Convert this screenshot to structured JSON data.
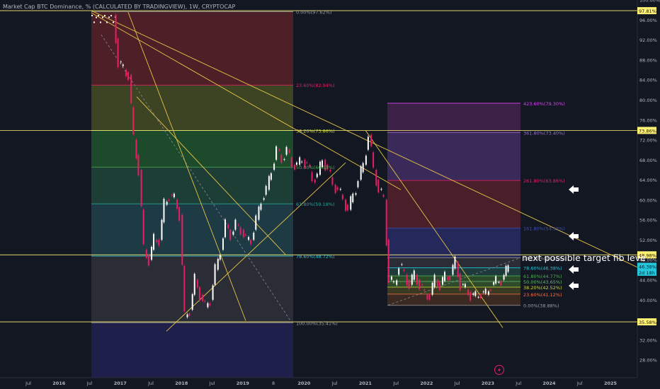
{
  "header": {
    "title": "Market Cap BTC Dominance, % (CALCULATED BY TRADINGVIEW), 1W, CRYPTOCAP"
  },
  "colors": {
    "background": "#131722",
    "axis_text": "#b2b5be",
    "trendline": "#e8c547",
    "candle_up": "#ffffff",
    "candle_down": "#e91e63",
    "price_tag": "#26c6da",
    "price_tag_secondary": "#ff9800",
    "level_tag": "#fff176"
  },
  "chart_data": {
    "type": "candlestick",
    "x_ticks": [
      "Jul",
      "2016",
      "Jul",
      "2017",
      "Jul",
      "2018",
      "Jul",
      "2019",
      "8",
      "2020",
      "Jul",
      "2021",
      "Jul",
      "2022",
      "Jul",
      "2023",
      "Jul",
      "2024",
      "Jul",
      "2025"
    ],
    "y_ticks": [
      "100.00%",
      "96.00%",
      "92.00%",
      "88.00%",
      "84.00%",
      "80.00%",
      "76.00%",
      "72.00%",
      "68.00%",
      "64.00%",
      "60.00%",
      "56.00%",
      "52.00%",
      "48.00%",
      "44.00%",
      "40.00%",
      "36.00%",
      "32.00%",
      "28.00%"
    ],
    "y_range": [
      27,
      100.5
    ],
    "price_labels": [
      {
        "text": "97.81%",
        "value": 97.81
      },
      {
        "text": "73.86%",
        "value": 73.86
      },
      {
        "text": "48.98%",
        "value": 48.98
      },
      {
        "text": "46.38%",
        "value": 46.38
      },
      {
        "text": "2d 18h",
        "value": 45.2
      },
      {
        "text": "35.58%",
        "value": 35.58
      }
    ],
    "fib_1": [
      {
        "label": "0.00%(97.62%)",
        "value": 97.62
      },
      {
        "label": "23.60%(82.94%)",
        "value": 82.94
      },
      {
        "label": "38.20%(73.86%)",
        "value": 73.86
      },
      {
        "label": "50.00%(66.53%)",
        "value": 66.53
      },
      {
        "label": "61.80%(59.18%)",
        "value": 59.18
      },
      {
        "label": "78.60%(48.72%)",
        "value": 48.72
      },
      {
        "label": "100.00%(35.41%)",
        "value": 35.41
      }
    ],
    "fib_2": [
      {
        "label": "423.60%(79.30%)",
        "value": 79.3
      },
      {
        "label": "361.80%(73.40%)",
        "value": 73.4
      },
      {
        "label": "261.80%(63.86%)",
        "value": 63.86
      },
      {
        "label": "161.80%(54.33%)",
        "value": 54.33
      },
      {
        "label": "100.00%(48.42%)",
        "value": 48.42
      },
      {
        "label": "78.60%(46.38%)",
        "value": 46.38
      },
      {
        "label": "61.80%(44.77%)",
        "value": 44.77
      },
      {
        "label": "50.00%(43.65%)",
        "value": 43.65
      },
      {
        "label": "38.20%(42.52%)",
        "value": 42.52
      },
      {
        "label": "23.60%(41.12%)",
        "value": 41.12
      },
      {
        "label": "0.00%(38.88%)",
        "value": 38.88
      }
    ],
    "annotation": "next possible target  fib leve",
    "approx_weekly_close": [
      {
        "date": "2016-12",
        "v": 87.5
      },
      {
        "date": "2017-01",
        "v": 86.0
      },
      {
        "date": "2017-02",
        "v": 85.0
      },
      {
        "date": "2017-03",
        "v": 72.0
      },
      {
        "date": "2017-04",
        "v": 66.0
      },
      {
        "date": "2017-05",
        "v": 50.0
      },
      {
        "date": "2017-06",
        "v": 48.0
      },
      {
        "date": "2017-07",
        "v": 52.0
      },
      {
        "date": "2017-08",
        "v": 52.0
      },
      {
        "date": "2017-09",
        "v": 59.0
      },
      {
        "date": "2017-10",
        "v": 61.0
      },
      {
        "date": "2017-11",
        "v": 60.0
      },
      {
        "date": "2017-12",
        "v": 57.0
      },
      {
        "date": "2018-01",
        "v": 36.5
      },
      {
        "date": "2018-02",
        "v": 38.0
      },
      {
        "date": "2018-03",
        "v": 44.0
      },
      {
        "date": "2018-04",
        "v": 41.0
      },
      {
        "date": "2018-05",
        "v": 38.5
      },
      {
        "date": "2018-06",
        "v": 40.0
      },
      {
        "date": "2018-07",
        "v": 46.0
      },
      {
        "date": "2018-08",
        "v": 50.0
      },
      {
        "date": "2018-09",
        "v": 55.0
      },
      {
        "date": "2018-10",
        "v": 53.0
      },
      {
        "date": "2018-11",
        "v": 55.0
      },
      {
        "date": "2018-12",
        "v": 54.0
      },
      {
        "date": "2019-01",
        "v": 52.0
      },
      {
        "date": "2019-02",
        "v": 52.0
      },
      {
        "date": "2019-03",
        "v": 56.0
      },
      {
        "date": "2019-04",
        "v": 60.0
      },
      {
        "date": "2019-05",
        "v": 62.0
      },
      {
        "date": "2019-06",
        "v": 66.0
      },
      {
        "date": "2019-07",
        "v": 70.0
      },
      {
        "date": "2019-08",
        "v": 68.0
      },
      {
        "date": "2019-09",
        "v": 70.0
      },
      {
        "date": "2019-10",
        "v": 67.0
      },
      {
        "date": "2019-11",
        "v": 67.0
      },
      {
        "date": "2019-12",
        "v": 68.0
      },
      {
        "date": "2020-01",
        "v": 67.0
      },
      {
        "date": "2020-02",
        "v": 64.0
      },
      {
        "date": "2020-03",
        "v": 65.0
      },
      {
        "date": "2020-04",
        "v": 68.0
      },
      {
        "date": "2020-05",
        "v": 66.0
      },
      {
        "date": "2020-06",
        "v": 63.0
      },
      {
        "date": "2020-07",
        "v": 62.0
      },
      {
        "date": "2020-08",
        "v": 60.0
      },
      {
        "date": "2020-09",
        "v": 58.0
      },
      {
        "date": "2020-10",
        "v": 61.0
      },
      {
        "date": "2020-11",
        "v": 64.0
      },
      {
        "date": "2020-12",
        "v": 67.0
      },
      {
        "date": "2021-01",
        "v": 73.0
      },
      {
        "date": "2021-02",
        "v": 66.0
      },
      {
        "date": "2021-03",
        "v": 62.0
      },
      {
        "date": "2021-04",
        "v": 60.0
      },
      {
        "date": "2021-05",
        "v": 44.0
      },
      {
        "date": "2021-06",
        "v": 43.0
      },
      {
        "date": "2021-07",
        "v": 47.0
      },
      {
        "date": "2021-08",
        "v": 45.0
      },
      {
        "date": "2021-09",
        "v": 43.0
      },
      {
        "date": "2021-10",
        "v": 45.0
      },
      {
        "date": "2021-11",
        "v": 43.0
      },
      {
        "date": "2021-12",
        "v": 41.0
      },
      {
        "date": "2022-01",
        "v": 41.0
      },
      {
        "date": "2022-02",
        "v": 44.0
      },
      {
        "date": "2022-03",
        "v": 43.0
      },
      {
        "date": "2022-04",
        "v": 44.5
      },
      {
        "date": "2022-05",
        "v": 45.0
      },
      {
        "date": "2022-06",
        "v": 47.5
      },
      {
        "date": "2022-07",
        "v": 43.0
      },
      {
        "date": "2022-08",
        "v": 42.0
      },
      {
        "date": "2022-09",
        "v": 41.0
      },
      {
        "date": "2022-10",
        "v": 40.5
      },
      {
        "date": "2022-11",
        "v": 41.5
      },
      {
        "date": "2022-12",
        "v": 41.0
      },
      {
        "date": "2023-01",
        "v": 43.0
      },
      {
        "date": "2023-02",
        "v": 43.5
      },
      {
        "date": "2023-03",
        "v": 44.0
      },
      {
        "date": "2023-04",
        "v": 46.4
      }
    ]
  }
}
